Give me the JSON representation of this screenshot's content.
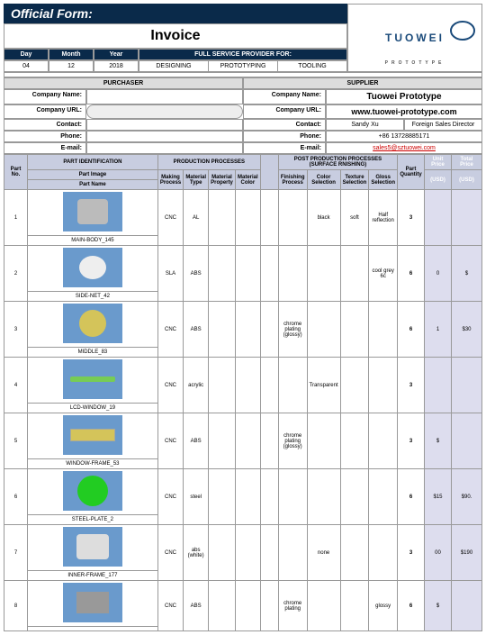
{
  "header": {
    "form": "Official Form:",
    "title": "Invoice",
    "logo": "TUOWEI",
    "logo_sub": "PROTOTYPE"
  },
  "date": {
    "day_h": "Day",
    "month_h": "Month",
    "year_h": "Year",
    "svc_h": "FULL SERVICE PROVIDER FOR:",
    "day": "04",
    "month": "12",
    "year": "2018",
    "svc": [
      "DESIGNING",
      "PROTOTYPING",
      "TOOLING"
    ]
  },
  "sect": {
    "purchaser": "PURCHASER",
    "supplier": "SUPPLIER"
  },
  "labels": {
    "cname": "Company Name:",
    "curl": "Company URL:",
    "contact": "Contact:",
    "phone": "Phone:",
    "email": "E-mail:"
  },
  "supplier": {
    "name": "Tuowei Prototype",
    "url": "www.tuowei-prototype.com",
    "contact": "Sandy Xu",
    "role": "Foreign Sales Director",
    "phone": "+86 13728885171",
    "email": "sales5@sztuowei.com"
  },
  "thdr": {
    "partno": "Part No.",
    "pid": "PART IDENTIFICATION",
    "pp": "PRODUCTION PROCESSES",
    "ppp": "POST PRODUCTION PROCESSES",
    "sf": "(SURFACE RNISHING)",
    "pimg": "Part Image",
    "pname": "Part Name",
    "mp": "Making Process",
    "mt": "Material Type",
    "mprop": "Material Property",
    "mc": "Material Color",
    "fp": "Finishing Process",
    "cs": "Color Selection",
    "ts": "Texture Selection",
    "gs": "Gloss Selection",
    "pq": "Part Quantity",
    "up": "Unit Price",
    "tp": "Total Price",
    "usd": "(USD)",
    "usd2": "(USD)"
  },
  "rows": [
    {
      "no": "1",
      "name": "MAIN-BODY_145",
      "mp": "CNC",
      "mt": "AL",
      "cs": "black",
      "ts": "soft",
      "gs": "Half reflection",
      "qty": "3"
    },
    {
      "no": "2",
      "name": "SIDE-NET_42",
      "mp": "SLA",
      "mt": "ABS",
      "gs": "cool grey 6c",
      "qty": "6",
      "up": "0",
      "tp": "$"
    },
    {
      "no": "3",
      "name": "MIDDLE_83",
      "mp": "CNC",
      "mt": "ABS",
      "fp": "chrome plating (glossy)",
      "qty": "6",
      "up": "1",
      "tp": "$30"
    },
    {
      "no": "4",
      "name": "LCD-WINDOW_19",
      "mp": "CNC",
      "mt": "acrylic",
      "cs": "Transparent",
      "qty": "3"
    },
    {
      "no": "5",
      "name": "WINDOW-FRAME_53",
      "mp": "CNC",
      "mt": "ABS",
      "fp": "chrome plating (glossy)",
      "qty": "3",
      "up": "$"
    },
    {
      "no": "6",
      "name": "STEEL-PLATE_2",
      "mp": "CNC",
      "mt": "steel",
      "qty": "6",
      "up": "$15",
      "tp": "$90."
    },
    {
      "no": "7",
      "name": "INNER-FRAME_177",
      "mp": "CNC",
      "mt": "abs (white)",
      "cs": "none",
      "qty": "3",
      "up": "00",
      "tp": "$190"
    },
    {
      "no": "8",
      "name": "",
      "mp": "CNC",
      "mt": "ABS",
      "fp": "chrome plating",
      "gs": "glossy",
      "qty": "6",
      "up": "$"
    }
  ]
}
